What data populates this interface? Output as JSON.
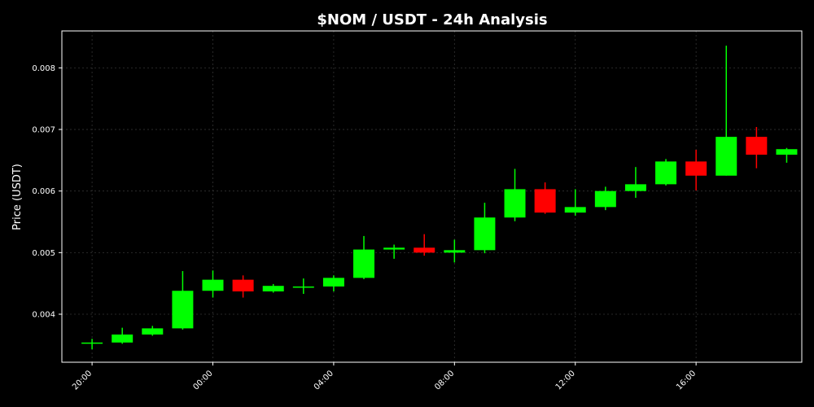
{
  "chart_data": {
    "type": "candlestick",
    "title": "$NOM / USDT - 24h Analysis",
    "xlabel": "",
    "ylabel": "Price (USDT)",
    "ylim": [
      0.00322,
      0.0086
    ],
    "xlim": [
      -1.0,
      23.5
    ],
    "grid": true,
    "y_ticks": [
      0.004,
      0.005,
      0.006,
      0.007,
      0.008
    ],
    "y_tick_labels": [
      "0.004",
      "0.005",
      "0.006",
      "0.007",
      "0.008"
    ],
    "x_ticks": [
      {
        "i": 0,
        "label": "20:00"
      },
      {
        "i": 4,
        "label": "00:00"
      },
      {
        "i": 8,
        "label": "04:00"
      },
      {
        "i": 12,
        "label": "08:00"
      },
      {
        "i": 16,
        "label": "12:00"
      },
      {
        "i": 20,
        "label": "16:00"
      }
    ],
    "candles": [
      {
        "time": "20:00",
        "open": 0.00352,
        "high": 0.0036,
        "low": 0.00343,
        "close": 0.00354
      },
      {
        "time": "21:00",
        "open": 0.00354,
        "high": 0.00378,
        "low": 0.00352,
        "close": 0.00367
      },
      {
        "time": "22:00",
        "open": 0.00367,
        "high": 0.00381,
        "low": 0.00365,
        "close": 0.00377
      },
      {
        "time": "23:00",
        "open": 0.00377,
        "high": 0.0047,
        "low": 0.00375,
        "close": 0.00438
      },
      {
        "time": "00:00",
        "open": 0.00438,
        "high": 0.00471,
        "low": 0.00427,
        "close": 0.00456
      },
      {
        "time": "01:00",
        "open": 0.00456,
        "high": 0.00463,
        "low": 0.00427,
        "close": 0.00437
      },
      {
        "time": "02:00",
        "open": 0.00437,
        "high": 0.00449,
        "low": 0.00435,
        "close": 0.00446
      },
      {
        "time": "03:00",
        "open": 0.00443,
        "high": 0.00458,
        "low": 0.00433,
        "close": 0.00445
      },
      {
        "time": "04:00",
        "open": 0.00445,
        "high": 0.00463,
        "low": 0.00437,
        "close": 0.00459
      },
      {
        "time": "05:00",
        "open": 0.00459,
        "high": 0.00527,
        "low": 0.00457,
        "close": 0.00505
      },
      {
        "time": "06:00",
        "open": 0.00505,
        "high": 0.00513,
        "low": 0.0049,
        "close": 0.00508
      },
      {
        "time": "07:00",
        "open": 0.00508,
        "high": 0.0053,
        "low": 0.00495,
        "close": 0.005
      },
      {
        "time": "08:00",
        "open": 0.005,
        "high": 0.00521,
        "low": 0.00484,
        "close": 0.00504
      },
      {
        "time": "09:00",
        "open": 0.00504,
        "high": 0.00581,
        "low": 0.00499,
        "close": 0.00557
      },
      {
        "time": "10:00",
        "open": 0.00557,
        "high": 0.00636,
        "low": 0.00551,
        "close": 0.00603
      },
      {
        "time": "11:00",
        "open": 0.00603,
        "high": 0.00614,
        "low": 0.00563,
        "close": 0.00565
      },
      {
        "time": "12:00",
        "open": 0.00565,
        "high": 0.00603,
        "low": 0.0056,
        "close": 0.00574
      },
      {
        "time": "13:00",
        "open": 0.00574,
        "high": 0.00607,
        "low": 0.00569,
        "close": 0.006
      },
      {
        "time": "14:00",
        "open": 0.006,
        "high": 0.00639,
        "low": 0.00589,
        "close": 0.00611
      },
      {
        "time": "15:00",
        "open": 0.00611,
        "high": 0.00652,
        "low": 0.00609,
        "close": 0.00648
      },
      {
        "time": "16:00",
        "open": 0.00648,
        "high": 0.00667,
        "low": 0.00601,
        "close": 0.00625
      },
      {
        "time": "17:00",
        "open": 0.00625,
        "high": 0.00836,
        "low": 0.00625,
        "close": 0.00688
      },
      {
        "time": "18:00",
        "open": 0.00688,
        "high": 0.00704,
        "low": 0.00637,
        "close": 0.00659
      },
      {
        "time": "19:00",
        "open": 0.00659,
        "high": 0.0067,
        "low": 0.00646,
        "close": 0.00668
      }
    ],
    "colors": {
      "up": "#00ff00",
      "down": "#ff0000",
      "background": "#000000",
      "axes_edge": "#ffffff",
      "grid": "#333333",
      "text": "#ffffff"
    }
  }
}
